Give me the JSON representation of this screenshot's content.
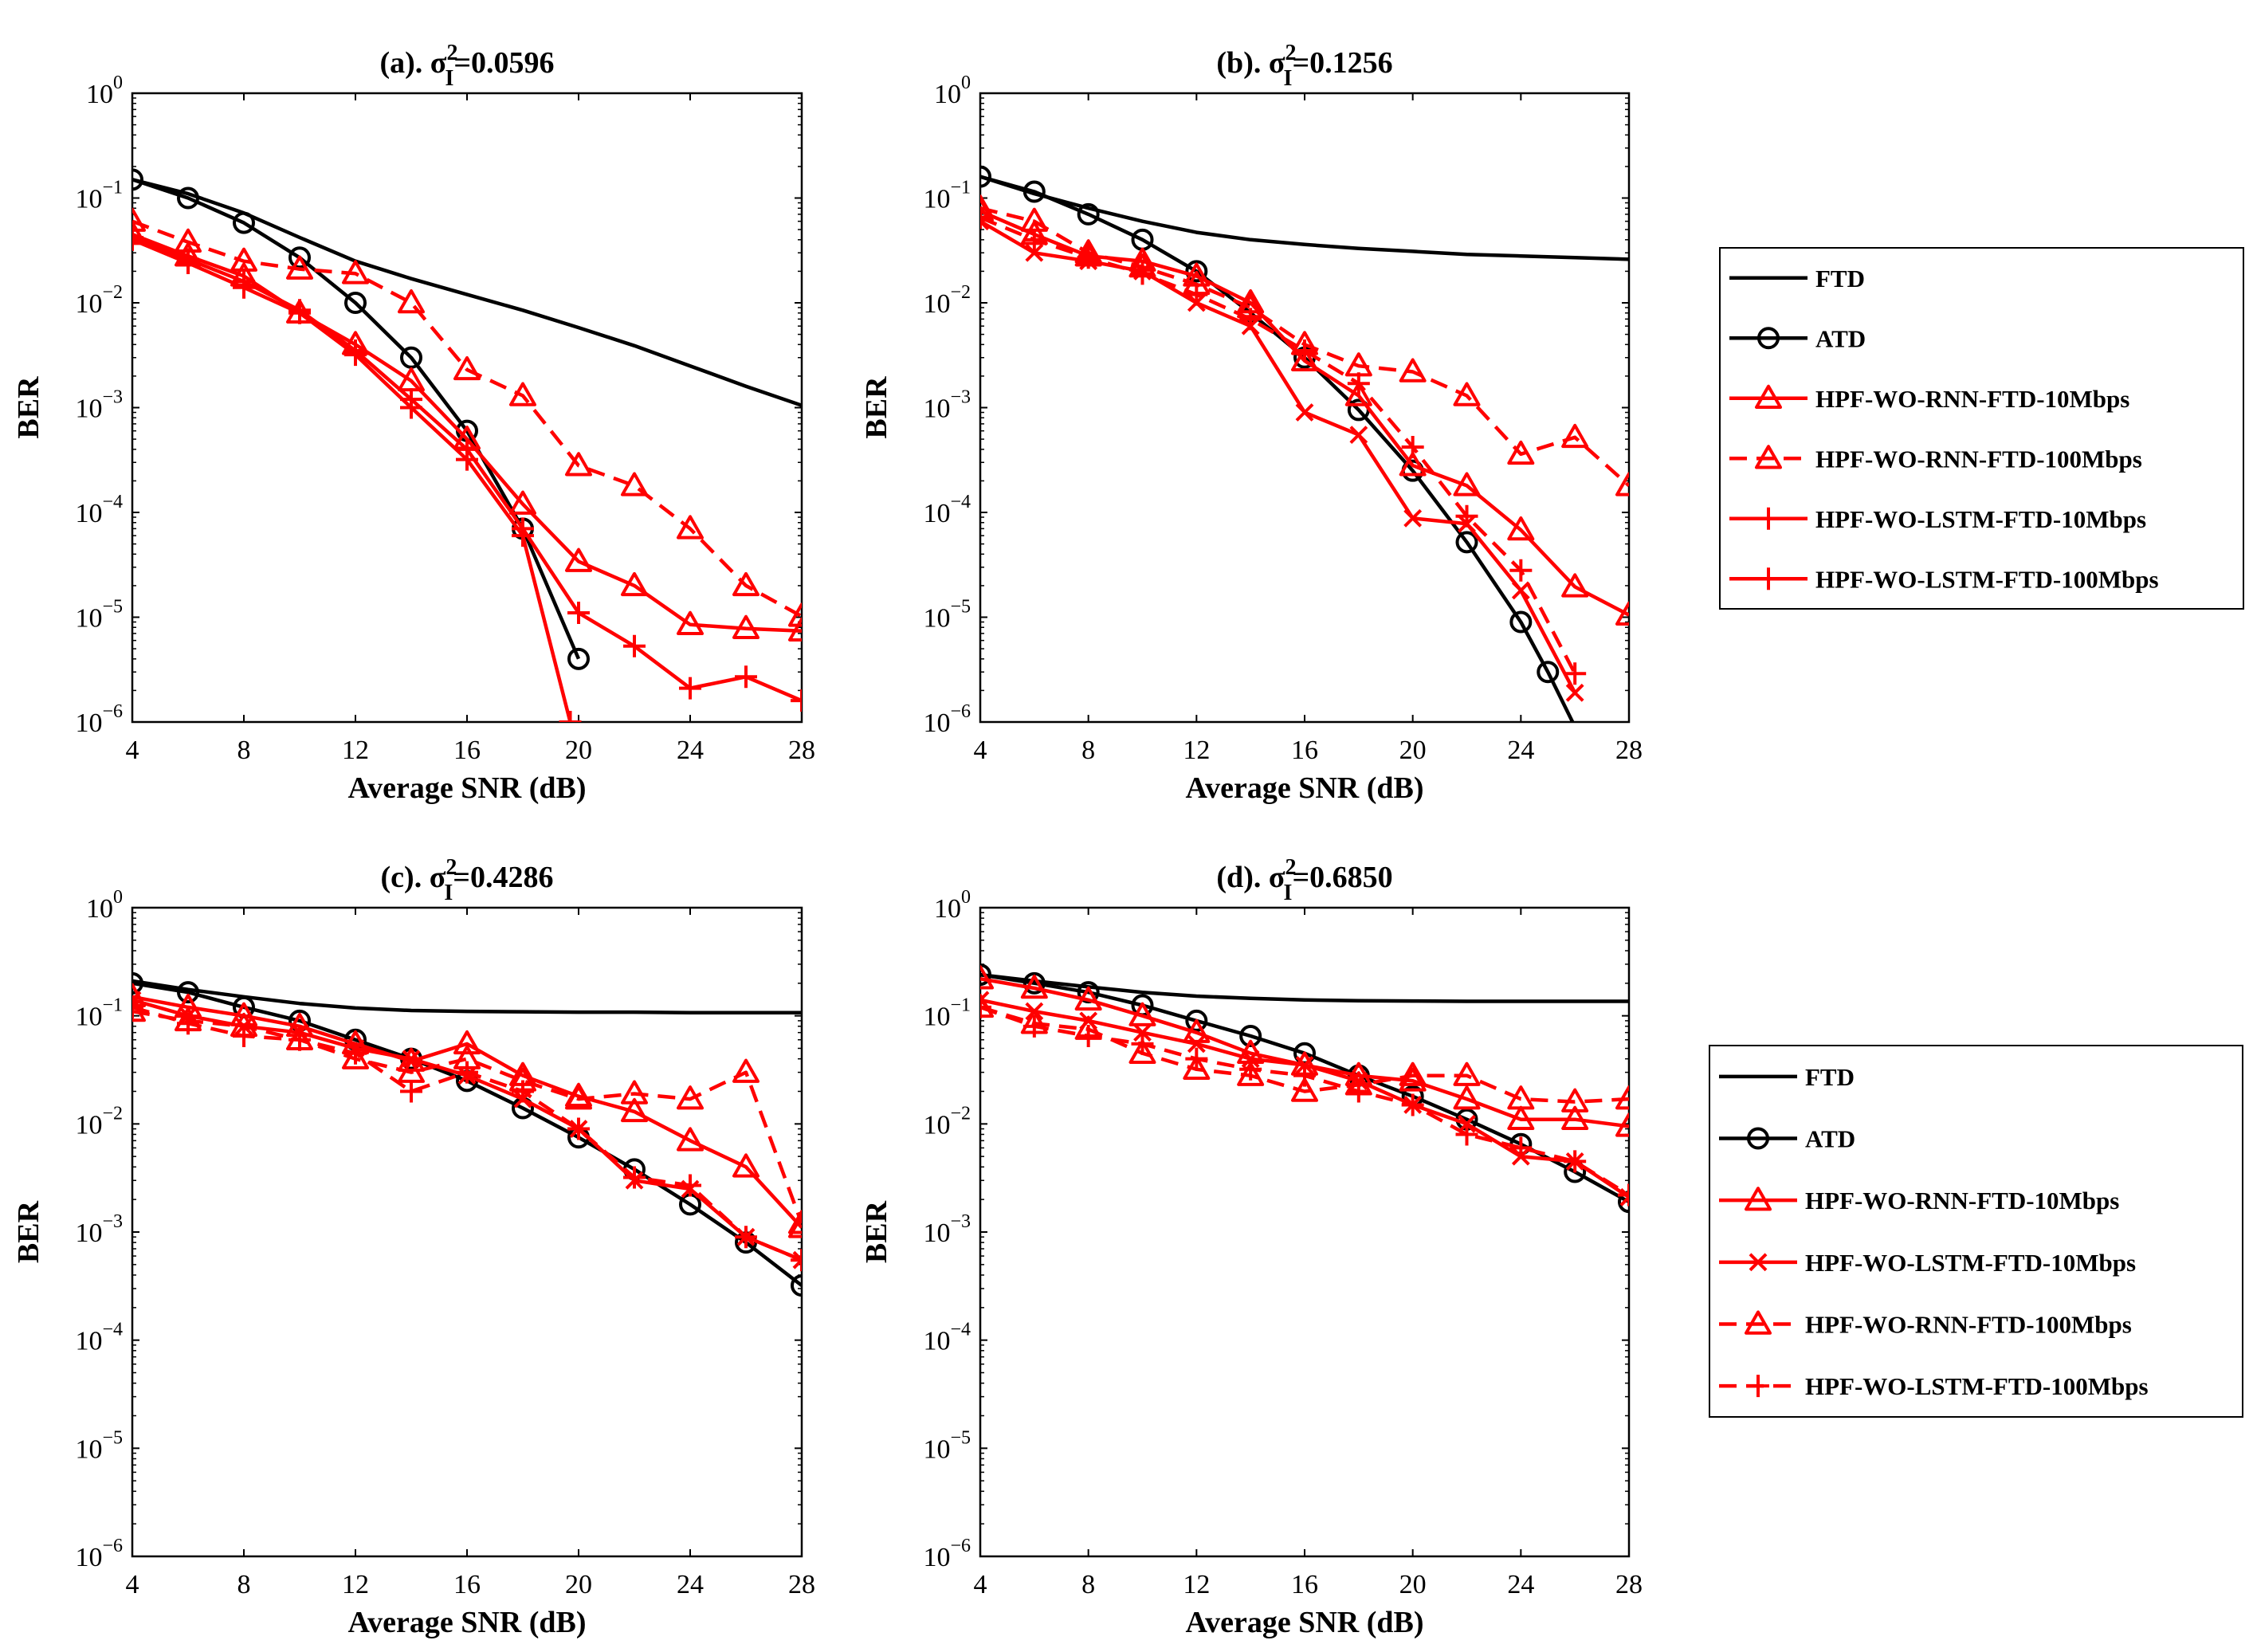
{
  "figure": {
    "xlabel": "Average SNR (dB)",
    "ylabel": "BER",
    "xticks": [
      "4",
      "8",
      "12",
      "16",
      "20",
      "24",
      "28"
    ],
    "yticks": [
      {
        "base": "10",
        "exp": "0"
      },
      {
        "base": "10",
        "exp": "−1"
      },
      {
        "base": "10",
        "exp": "−2"
      },
      {
        "base": "10",
        "exp": "−3"
      },
      {
        "base": "10",
        "exp": "−4"
      },
      {
        "base": "10",
        "exp": "−5"
      },
      {
        "base": "10",
        "exp": "−6"
      }
    ]
  },
  "legend_top": {
    "entries": [
      {
        "label": "FTD",
        "style": "solid",
        "color": "#000000",
        "marker": "none"
      },
      {
        "label": "ATD",
        "style": "solid",
        "color": "#000000",
        "marker": "circle"
      },
      {
        "label": "HPF-WO-RNN-FTD-10Mbps",
        "style": "solid",
        "color": "#ff0000",
        "marker": "triangle"
      },
      {
        "label": "HPF-WO-RNN-FTD-100Mbps",
        "style": "dashed",
        "color": "#ff0000",
        "marker": "triangle"
      },
      {
        "label": "HPF-WO-LSTM-FTD-10Mbps",
        "style": "solid",
        "color": "#ff0000",
        "marker": "plus"
      },
      {
        "label": "HPF-WO-LSTM-FTD-100Mbps",
        "style": "solid",
        "color": "#ff0000",
        "marker": "plus"
      }
    ]
  },
  "legend_bottom": {
    "entries": [
      {
        "label": "FTD",
        "style": "solid",
        "color": "#000000",
        "marker": "none"
      },
      {
        "label": "ATD",
        "style": "solid",
        "color": "#000000",
        "marker": "circle"
      },
      {
        "label": "HPF-WO-RNN-FTD-10Mbps",
        "style": "solid",
        "color": "#ff0000",
        "marker": "triangle"
      },
      {
        "label": "HPF-WO-LSTM-FTD-10Mbps",
        "style": "solid",
        "color": "#ff0000",
        "marker": "cross"
      },
      {
        "label": "HPF-WO-RNN-FTD-100Mbps",
        "style": "dashed",
        "color": "#ff0000",
        "marker": "triangle"
      },
      {
        "label": "HPF-WO-LSTM-FTD-100Mbps",
        "style": "dashed",
        "color": "#ff0000",
        "marker": "plus"
      }
    ]
  },
  "chart_data": [
    {
      "type": "line",
      "title_prefix": "(a). σ",
      "title_sup": "2",
      "title_sub": "I",
      "title_value": "=0.0596",
      "xlabel": "Average SNR (dB)",
      "ylabel": "BER",
      "yscale": "log",
      "xlim": [
        4,
        28
      ],
      "ylim": [
        1e-06,
        1
      ],
      "series": [
        {
          "name": "FTD",
          "style": "solid",
          "color": "#000000",
          "marker": "none",
          "x": [
            4,
            6,
            8,
            10,
            12,
            14,
            16,
            18,
            20,
            22,
            24,
            26,
            28
          ],
          "y": [
            0.15,
            0.11,
            0.072,
            0.042,
            0.025,
            0.017,
            0.012,
            0.0085,
            0.0058,
            0.0039,
            0.0025,
            0.0016,
            0.00105
          ]
        },
        {
          "name": "ATD",
          "style": "solid",
          "color": "#000000",
          "marker": "circle",
          "x": [
            4,
            6,
            8,
            10,
            12,
            14,
            16,
            18,
            20
          ],
          "y": [
            0.15,
            0.1,
            0.058,
            0.027,
            0.01,
            0.003,
            0.0006,
            7e-05,
            4e-06
          ]
        },
        {
          "name": "HPF-WO-RNN-FTD-10Mbps",
          "style": "solid",
          "color": "#ff0000",
          "marker": "triangle",
          "x": [
            4,
            6,
            8,
            10,
            12,
            14,
            16,
            18,
            20,
            22,
            24,
            26,
            28
          ],
          "y": [
            0.045,
            0.028,
            0.018,
            0.008,
            0.004,
            0.0018,
            0.0005,
            0.00012,
            3.4e-05,
            2e-05,
            8.5e-06,
            7.8e-06,
            7.4e-06
          ]
        },
        {
          "name": "HPF-WO-RNN-FTD-100Mbps",
          "style": "dashed",
          "color": "#ff0000",
          "marker": "triangle",
          "x": [
            4,
            6,
            8,
            10,
            12,
            14,
            16,
            18,
            20,
            22,
            24,
            26,
            28
          ],
          "y": [
            0.06,
            0.038,
            0.025,
            0.021,
            0.019,
            0.01,
            0.0023,
            0.0013,
            0.00028,
            0.00018,
            7e-05,
            2e-05,
            1.02e-05
          ]
        },
        {
          "name": "HPF-WO-LSTM-FTD-10Mbps",
          "style": "solid",
          "color": "#ff0000",
          "marker": "plus",
          "x": [
            4,
            6,
            8,
            10,
            12,
            14,
            16,
            18,
            19.7
          ],
          "y": [
            0.04,
            0.024,
            0.014,
            0.008,
            0.0032,
            0.001,
            0.00032,
            6e-05,
            1e-06
          ]
        },
        {
          "name": "HPF-WO-LSTM-FTD-100Mbps",
          "style": "solid",
          "color": "#ff0000",
          "marker": "plus",
          "x": [
            4,
            6,
            8,
            10,
            12,
            14,
            16,
            18,
            20,
            22,
            24,
            26,
            28
          ],
          "y": [
            0.042,
            0.026,
            0.016,
            0.0085,
            0.0035,
            0.0012,
            0.0004,
            7e-05,
            1.1e-05,
            5.3e-06,
            2.1e-06,
            2.7e-06,
            1.6e-06
          ]
        }
      ]
    },
    {
      "type": "line",
      "title_prefix": "(b). σ",
      "title_sup": "2",
      "title_sub": "I",
      "title_value": "=0.1256",
      "xlabel": "Average SNR (dB)",
      "ylabel": "BER",
      "yscale": "log",
      "xlim": [
        4,
        28
      ],
      "ylim": [
        1e-06,
        1
      ],
      "series": [
        {
          "name": "FTD",
          "style": "solid",
          "color": "#000000",
          "marker": "none",
          "x": [
            4,
            6,
            8,
            10,
            12,
            14,
            16,
            18,
            20,
            22,
            24,
            26,
            28
          ],
          "y": [
            0.16,
            0.11,
            0.08,
            0.06,
            0.047,
            0.04,
            0.036,
            0.033,
            0.031,
            0.029,
            0.028,
            0.027,
            0.026
          ]
        },
        {
          "name": "ATD",
          "style": "solid",
          "color": "#000000",
          "marker": "circle",
          "x": [
            4,
            6,
            8,
            10,
            12,
            14,
            16,
            18,
            20,
            22,
            24,
            25,
            26
          ],
          "y": [
            0.16,
            0.115,
            0.07,
            0.04,
            0.02,
            0.008,
            0.003,
            0.00095,
            0.00025,
            5.2e-05,
            9e-06,
            3e-06,
            9e-07
          ]
        },
        {
          "name": "HPF-WO-RNN-FTD-10Mbps",
          "style": "solid",
          "color": "#ff0000",
          "marker": "triangle",
          "x": [
            4,
            6,
            8,
            10,
            12,
            14,
            16,
            18,
            20,
            22,
            24,
            26,
            28
          ],
          "y": [
            0.075,
            0.045,
            0.028,
            0.025,
            0.018,
            0.01,
            0.0028,
            0.0013,
            0.00028,
            0.00018,
            6.8e-05,
            1.95e-05,
            1.05e-05
          ]
        },
        {
          "name": "HPF-WO-RNN-FTD-100Mbps",
          "style": "dashed",
          "color": "#ff0000",
          "marker": "triangle",
          "x": [
            4,
            6,
            8,
            10,
            12,
            14,
            16,
            18,
            20,
            22,
            24,
            26,
            28
          ],
          "y": [
            0.08,
            0.06,
            0.03,
            0.022,
            0.015,
            0.009,
            0.004,
            0.0025,
            0.0022,
            0.0013,
            0.00036,
            0.00052,
            0.00018
          ]
        },
        {
          "name": "HPF-WO-LSTM-FTD-10Mbps",
          "style": "solid",
          "color": "#ff0000",
          "marker": "cross",
          "x": [
            4,
            6,
            8,
            10,
            12,
            14,
            16,
            18,
            20,
            22,
            24,
            26
          ],
          "y": [
            0.06,
            0.03,
            0.025,
            0.02,
            0.01,
            0.006,
            0.0009,
            0.00055,
            8.8e-05,
            7.8e-05,
            1.8e-05,
            1.9e-06
          ]
        },
        {
          "name": "HPF-WO-LSTM-FTD-100Mbps",
          "style": "dashed",
          "color": "#ff0000",
          "marker": "plus",
          "x": [
            4,
            6,
            8,
            10,
            12,
            14,
            16,
            18,
            20,
            22,
            24,
            26
          ],
          "y": [
            0.065,
            0.04,
            0.027,
            0.019,
            0.012,
            0.007,
            0.0035,
            0.0017,
            0.00042,
            9.2e-05,
            2.8e-05,
            2.9e-06
          ]
        }
      ]
    },
    {
      "type": "line",
      "title_prefix": "(c). σ",
      "title_sup": "2",
      "title_sub": "I",
      "title_value": "=0.4286",
      "xlabel": "Average SNR (dB)",
      "ylabel": "BER",
      "yscale": "log",
      "xlim": [
        4,
        28
      ],
      "ylim": [
        1e-06,
        1
      ],
      "series": [
        {
          "name": "FTD",
          "style": "solid",
          "color": "#000000",
          "marker": "none",
          "x": [
            4,
            6,
            8,
            10,
            12,
            14,
            16,
            18,
            20,
            22,
            24,
            26,
            28
          ],
          "y": [
            0.21,
            0.175,
            0.15,
            0.13,
            0.118,
            0.112,
            0.11,
            0.109,
            0.108,
            0.108,
            0.107,
            0.107,
            0.107
          ]
        },
        {
          "name": "ATD",
          "style": "solid",
          "color": "#000000",
          "marker": "circle",
          "x": [
            4,
            6,
            8,
            10,
            12,
            14,
            16,
            18,
            20,
            22,
            24,
            26,
            28
          ],
          "y": [
            0.2,
            0.165,
            0.12,
            0.09,
            0.06,
            0.04,
            0.025,
            0.014,
            0.0075,
            0.0038,
            0.0018,
            0.0008,
            0.00032
          ]
        },
        {
          "name": "HPF-WO-RNN-FTD-10Mbps",
          "style": "solid",
          "color": "#ff0000",
          "marker": "triangle",
          "x": [
            4,
            6,
            8,
            10,
            12,
            14,
            16,
            18,
            20,
            22,
            24,
            26,
            28
          ],
          "y": [
            0.15,
            0.12,
            0.1,
            0.08,
            0.055,
            0.038,
            0.055,
            0.028,
            0.018,
            0.013,
            0.007,
            0.004,
            0.0011
          ]
        },
        {
          "name": "HPF-WO-LSTM-FTD-10Mbps",
          "style": "solid",
          "color": "#ff0000",
          "marker": "cross",
          "x": [
            4,
            6,
            8,
            10,
            12,
            14,
            16,
            18,
            20,
            22,
            24,
            26,
            28
          ],
          "y": [
            0.14,
            0.1,
            0.08,
            0.07,
            0.05,
            0.04,
            0.028,
            0.017,
            0.009,
            0.003,
            0.0025,
            0.0009,
            0.00055
          ]
        },
        {
          "name": "HPF-WO-RNN-FTD-100Mbps",
          "style": "dashed",
          "color": "#ff0000",
          "marker": "triangle",
          "x": [
            4,
            6,
            8,
            10,
            12,
            14,
            16,
            18,
            20,
            22,
            24,
            26,
            28
          ],
          "y": [
            0.11,
            0.09,
            0.08,
            0.06,
            0.04,
            0.03,
            0.04,
            0.025,
            0.017,
            0.019,
            0.017,
            0.03,
            0.0012
          ]
        },
        {
          "name": "HPF-WO-LSTM-FTD-100Mbps",
          "style": "dashed",
          "color": "#ff0000",
          "marker": "plus",
          "x": [
            4,
            6,
            8,
            10,
            12,
            14,
            16,
            18,
            20,
            22,
            24,
            26,
            28
          ],
          "y": [
            0.12,
            0.085,
            0.065,
            0.06,
            0.045,
            0.02,
            0.03,
            0.02,
            0.009,
            0.0032,
            0.0027,
            0.0009,
            0.00055
          ]
        }
      ]
    },
    {
      "type": "line",
      "title_prefix": "(d). σ",
      "title_sup": "2",
      "title_sub": "I",
      "title_value": "=0.6850",
      "xlabel": "Average SNR (dB)",
      "ylabel": "BER",
      "yscale": "log",
      "xlim": [
        4,
        28
      ],
      "ylim": [
        1e-06,
        1
      ],
      "series": [
        {
          "name": "FTD",
          "style": "solid",
          "color": "#000000",
          "marker": "none",
          "x": [
            4,
            6,
            8,
            10,
            12,
            14,
            16,
            18,
            20,
            22,
            24,
            26,
            28
          ],
          "y": [
            0.24,
            0.21,
            0.185,
            0.165,
            0.152,
            0.145,
            0.14,
            0.138,
            0.137,
            0.136,
            0.136,
            0.136,
            0.136
          ]
        },
        {
          "name": "ATD",
          "style": "solid",
          "color": "#000000",
          "marker": "circle",
          "x": [
            4,
            6,
            8,
            10,
            12,
            14,
            16,
            18,
            20,
            22,
            24,
            26,
            28
          ],
          "y": [
            0.24,
            0.2,
            0.165,
            0.125,
            0.09,
            0.065,
            0.045,
            0.028,
            0.018,
            0.011,
            0.0065,
            0.0036,
            0.0019
          ]
        },
        {
          "name": "HPF-WO-RNN-FTD-10Mbps",
          "style": "solid",
          "color": "#ff0000",
          "marker": "triangle",
          "x": [
            4,
            6,
            8,
            10,
            12,
            14,
            16,
            18,
            20,
            22,
            24,
            26,
            28
          ],
          "y": [
            0.22,
            0.18,
            0.14,
            0.1,
            0.07,
            0.045,
            0.035,
            0.028,
            0.025,
            0.017,
            0.011,
            0.011,
            0.0095
          ]
        },
        {
          "name": "HPF-WO-LSTM-FTD-10Mbps",
          "style": "solid",
          "color": "#ff0000",
          "marker": "cross",
          "x": [
            4,
            6,
            8,
            10,
            12,
            14,
            16,
            18,
            20,
            22,
            24,
            26,
            28
          ],
          "y": [
            0.14,
            0.11,
            0.09,
            0.07,
            0.055,
            0.04,
            0.035,
            0.025,
            0.015,
            0.01,
            0.005,
            0.0045,
            0.0021
          ]
        },
        {
          "name": "HPF-WO-RNN-FTD-100Mbps",
          "style": "dashed",
          "color": "#ff0000",
          "marker": "triangle",
          "x": [
            4,
            6,
            8,
            10,
            12,
            14,
            16,
            18,
            20,
            22,
            24,
            26,
            28
          ],
          "y": [
            0.12,
            0.085,
            0.075,
            0.045,
            0.032,
            0.028,
            0.02,
            0.023,
            0.028,
            0.028,
            0.017,
            0.016,
            0.017
          ]
        },
        {
          "name": "HPF-WO-LSTM-FTD-100Mbps",
          "style": "dashed",
          "color": "#ff0000",
          "marker": "plus",
          "x": [
            4,
            6,
            8,
            10,
            12,
            14,
            16,
            18,
            20,
            22,
            24,
            26,
            28
          ],
          "y": [
            0.12,
            0.08,
            0.065,
            0.055,
            0.04,
            0.032,
            0.028,
            0.02,
            0.015,
            0.008,
            0.006,
            0.0045,
            0.0022
          ]
        }
      ]
    }
  ]
}
